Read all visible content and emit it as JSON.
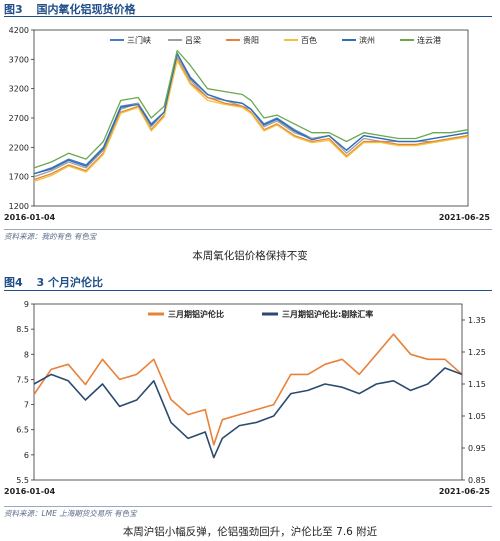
{
  "figure1": {
    "label": "图3",
    "title": "国内氧化铝现货价格",
    "source": "资料来源：我的有色   有色宝",
    "caption": "本周氧化铝价格保持不变"
  },
  "figure2": {
    "label": "图4",
    "title": "3 个月沪伦比",
    "source": "资料来源：LME   上海期货交易所   有色宝",
    "caption": "本周沪铝小幅反弹，伦铝强劲回升，沪伦比至 7.6 附近"
  },
  "chart_data": [
    {
      "type": "line",
      "title": "国内氧化铝现货价格",
      "x_start": "2016-01-04",
      "x_end": "2021-06-25",
      "ylim": [
        1200,
        4200
      ],
      "yticks": [
        1200,
        1700,
        2200,
        2700,
        3200,
        3700,
        4200
      ],
      "grid": false,
      "legend_position": "top",
      "x": [
        0,
        0.04,
        0.08,
        0.12,
        0.16,
        0.2,
        0.24,
        0.27,
        0.3,
        0.33,
        0.36,
        0.4,
        0.44,
        0.48,
        0.5,
        0.53,
        0.56,
        0.6,
        0.64,
        0.68,
        0.72,
        0.76,
        0.8,
        0.84,
        0.88,
        0.92,
        0.96,
        1.0
      ],
      "series": [
        {
          "name": "三门峡",
          "color": "#4a79c4",
          "values": [
            1750,
            1850,
            2000,
            1900,
            2200,
            2900,
            2950,
            2600,
            2800,
            3800,
            3400,
            3100,
            3000,
            2950,
            2850,
            2600,
            2700,
            2500,
            2350,
            2400,
            2150,
            2400,
            2350,
            2300,
            2300,
            2350,
            2400,
            2450
          ]
        },
        {
          "name": "吕梁",
          "color": "#9e9e9e",
          "values": [
            1700,
            1800,
            1950,
            1850,
            2150,
            2850,
            2950,
            2550,
            2800,
            3750,
            3350,
            3050,
            3000,
            2900,
            2850,
            2550,
            2650,
            2450,
            2350,
            2400,
            2100,
            2350,
            2300,
            2300,
            2300,
            2300,
            2350,
            2400
          ]
        },
        {
          "name": "贵阳",
          "color": "#e8823a",
          "values": [
            1650,
            1750,
            1900,
            1800,
            2100,
            2800,
            2900,
            2500,
            2750,
            3700,
            3300,
            3050,
            2950,
            2900,
            2800,
            2500,
            2600,
            2400,
            2300,
            2350,
            2050,
            2300,
            2300,
            2250,
            2250,
            2300,
            2350,
            2400
          ]
        },
        {
          "name": "百色",
          "color": "#f2c23a",
          "values": [
            1620,
            1720,
            1880,
            1780,
            2080,
            2780,
            2880,
            2480,
            2720,
            3680,
            3280,
            3000,
            2930,
            2880,
            2780,
            2480,
            2580,
            2380,
            2280,
            2320,
            2030,
            2280,
            2280,
            2230,
            2230,
            2280,
            2330,
            2380
          ]
        },
        {
          "name": "滨州",
          "color": "#2f6fb5",
          "values": [
            1750,
            1830,
            1980,
            1880,
            2180,
            2880,
            2930,
            2580,
            2800,
            3800,
            3380,
            3100,
            3000,
            2950,
            2850,
            2580,
            2680,
            2480,
            2330,
            2400,
            2150,
            2400,
            2350,
            2300,
            2300,
            2350,
            2400,
            2450
          ]
        },
        {
          "name": "连云港",
          "color": "#6aa84f",
          "values": [
            1850,
            1950,
            2100,
            2000,
            2300,
            3000,
            3050,
            2700,
            2900,
            3850,
            3600,
            3200,
            3150,
            3100,
            3000,
            2700,
            2750,
            2600,
            2450,
            2450,
            2300,
            2450,
            2400,
            2350,
            2350,
            2450,
            2450,
            2500
          ]
        }
      ]
    },
    {
      "type": "line",
      "title": "3 个月沪伦比",
      "x_start": "2016-01-04",
      "x_end": "2021-06-25",
      "ylim_left": [
        5.5,
        9
      ],
      "yticks_left": [
        5.5,
        6,
        6.5,
        7,
        7.5,
        8,
        8.5,
        9
      ],
      "ylim_right": [
        0.85,
        1.4
      ],
      "yticks_right": [
        0.85,
        0.95,
        1.05,
        1.15,
        1.25,
        1.35
      ],
      "grid": false,
      "legend_position": "top",
      "x": [
        0,
        0.04,
        0.08,
        0.12,
        0.16,
        0.2,
        0.24,
        0.28,
        0.32,
        0.36,
        0.4,
        0.42,
        0.44,
        0.48,
        0.52,
        0.56,
        0.6,
        0.64,
        0.68,
        0.72,
        0.76,
        0.8,
        0.84,
        0.88,
        0.92,
        0.96,
        1.0
      ],
      "series": [
        {
          "name": "三月期铝沪伦比",
          "color": "#e8823a",
          "axis": "left",
          "values": [
            7.2,
            7.7,
            7.8,
            7.4,
            7.9,
            7.5,
            7.6,
            7.9,
            7.1,
            6.8,
            6.9,
            6.2,
            6.7,
            6.8,
            6.9,
            7.0,
            7.6,
            7.6,
            7.8,
            7.9,
            7.6,
            8.0,
            8.4,
            8.0,
            7.9,
            7.9,
            7.6
          ]
        },
        {
          "name": "三月期铝沪伦比:剔除汇率",
          "color": "#2b4a6f",
          "axis": "right",
          "values": [
            1.15,
            1.18,
            1.16,
            1.1,
            1.15,
            1.08,
            1.1,
            1.16,
            1.03,
            0.98,
            1.0,
            0.92,
            0.98,
            1.02,
            1.03,
            1.05,
            1.12,
            1.13,
            1.15,
            1.14,
            1.12,
            1.15,
            1.16,
            1.13,
            1.15,
            1.2,
            1.18
          ]
        }
      ]
    }
  ]
}
